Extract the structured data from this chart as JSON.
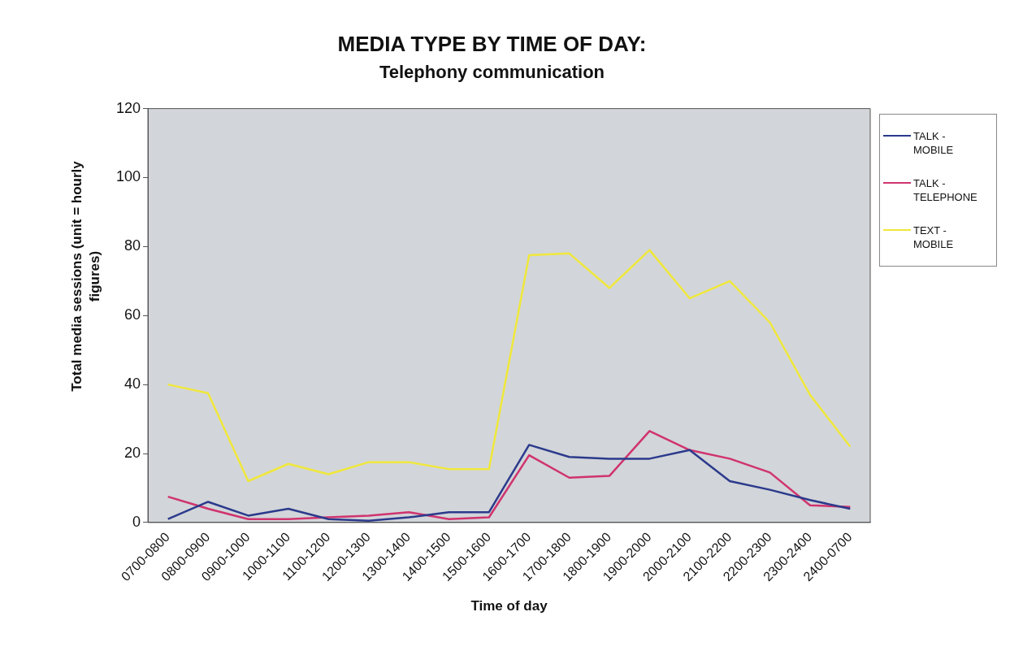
{
  "chart_data": {
    "type": "line",
    "title": "MEDIA TYPE BY TIME OF DAY:",
    "subtitle": "Telephony communication",
    "xlabel": "Time of day",
    "ylabel": "Total media sessions (unit = hourly figures)",
    "categories": [
      "0700-0800",
      "0800-0900",
      "0900-1000",
      "1000-1100",
      "1100-1200",
      "1200-1300",
      "1300-1400",
      "1400-1500",
      "1500-1600",
      "1600-1700",
      "1700-1800",
      "1800-1900",
      "1900-2000",
      "2000-2100",
      "2100-2200",
      "2200-2300",
      "2300-2400",
      "2400-0700"
    ],
    "series": [
      {
        "name": "TALK - MOBILE",
        "color": "#2b3a8c",
        "values": [
          1,
          6,
          2,
          4,
          1,
          0.5,
          1.5,
          3,
          3,
          22.5,
          19,
          18.5,
          18.5,
          21,
          12,
          9.5,
          6.5,
          4
        ]
      },
      {
        "name": "TALK - TELEPHONE",
        "color": "#d0336e",
        "values": [
          7.5,
          4,
          1,
          1,
          1.5,
          2,
          3,
          1,
          1.5,
          19.5,
          13,
          13.5,
          26.5,
          21,
          18.5,
          14.5,
          5,
          4.5
        ]
      },
      {
        "name": "TEXT - MOBILE",
        "color": "#f0e83c",
        "values": [
          40,
          37.5,
          12,
          17,
          14,
          17.5,
          17.5,
          15.5,
          15.5,
          77.5,
          78,
          68,
          79,
          65,
          70,
          58,
          37,
          22
        ]
      }
    ],
    "ylim": [
      0,
      120
    ],
    "yticks": [
      0,
      20,
      40,
      60,
      80,
      100,
      120
    ],
    "grid": false,
    "legend": "top right",
    "marker": "none",
    "line_style": "solid"
  }
}
